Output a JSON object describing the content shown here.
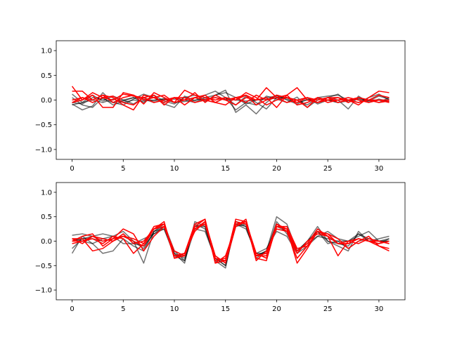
{
  "chart_data": [
    {
      "type": "line",
      "title": "",
      "xlabel": "",
      "ylabel": "",
      "xlim": [
        -1.55,
        32.55
      ],
      "ylim": [
        -1.2,
        1.2
      ],
      "xticks": [
        0,
        5,
        10,
        15,
        20,
        25,
        30
      ],
      "xtick_labels": [
        "0",
        "5",
        "10",
        "15",
        "20",
        "25",
        "30"
      ],
      "yticks": [
        -1.0,
        -0.5,
        0.0,
        0.5,
        1.0
      ],
      "ytick_labels": [
        "−1.0",
        "−0.5",
        "0.0",
        "0.5",
        "1.0"
      ],
      "grid": false,
      "legend": "none",
      "x": [
        0,
        1,
        2,
        3,
        4,
        5,
        6,
        7,
        8,
        9,
        10,
        11,
        12,
        13,
        14,
        15,
        16,
        17,
        18,
        19,
        20,
        21,
        22,
        23,
        24,
        25,
        26,
        27,
        28,
        29,
        30,
        31
      ],
      "series": [
        {
          "color": "#000000",
          "alpha": 0.55,
          "values": [
            -0.08,
            -0.2,
            -0.12,
            0.15,
            -0.05,
            -0.1,
            0.02,
            0.12,
            0.05,
            -0.08,
            -0.15,
            0.08,
            -0.02,
            0.1,
            0.18,
            0.05,
            -0.2,
            -0.05,
            -0.1,
            0.08,
            0.02,
            -0.05,
            0.06,
            -0.15,
            0.0,
            0.05,
            0.12,
            -0.05,
            0.04,
            -0.02,
            0.08,
            0.02
          ]
        },
        {
          "color": "#000000",
          "alpha": 0.55,
          "values": [
            0.12,
            -0.05,
            0.1,
            -0.02,
            0.08,
            0.0,
            -0.08,
            0.05,
            -0.02,
            0.03,
            -0.05,
            0.0,
            0.05,
            -0.03,
            0.1,
            0.2,
            -0.25,
            -0.1,
            -0.28,
            -0.05,
            0.1,
            0.0,
            -0.08,
            0.02,
            -0.05,
            0.05,
            0.0,
            -0.18,
            0.08,
            -0.05,
            0.02,
            -0.03
          ]
        },
        {
          "color": "#000000",
          "alpha": 0.55,
          "values": [
            0.05,
            -0.1,
            -0.15,
            0.05,
            -0.1,
            -0.02,
            0.05,
            -0.05,
            0.1,
            -0.02,
            -0.08,
            0.05,
            0.1,
            0.0,
            -0.05,
            0.05,
            -0.1,
            0.08,
            -0.05,
            -0.18,
            0.05,
            0.05,
            0.0,
            0.05,
            -0.08,
            0.0,
            -0.05,
            -0.02,
            0.05,
            0.0,
            -0.05,
            0.05
          ]
        },
        {
          "color": "#000000",
          "alpha": 0.55,
          "values": [
            -0.1,
            -0.05,
            0.0,
            -0.05,
            0.02,
            -0.05,
            0.0,
            -0.02,
            0.0,
            0.02,
            -0.05,
            -0.03,
            0.0,
            0.02,
            0.05,
            0.02,
            0.0,
            -0.02,
            0.0,
            0.02,
            0.05,
            0.02,
            -0.05,
            0.0,
            0.03,
            0.0,
            -0.05,
            0.0,
            0.02,
            -0.02,
            0.0,
            -0.03
          ]
        },
        {
          "color": "#000000",
          "alpha": 0.55,
          "values": [
            -0.05,
            -0.08,
            0.05,
            0.02,
            -0.05,
            0.0,
            0.05,
            0.02,
            -0.05,
            0.0,
            0.02,
            0.0,
            -0.05,
            0.05,
            0.1,
            0.15,
            0.05,
            -0.08,
            0.0,
            0.05,
            0.08,
            0.05,
            0.0,
            -0.1,
            0.05,
            0.08,
            0.1,
            0.0,
            -0.05,
            0.05,
            0.12,
            0.0
          ]
        },
        {
          "color": "#ff0000",
          "alpha": 1.0,
          "values": [
            0.28,
            0.0,
            0.15,
            0.05,
            0.08,
            -0.05,
            -0.1,
            0.05,
            0.1,
            -0.1,
            0.05,
            -0.1,
            0.05,
            0.0,
            -0.05,
            0.05,
            0.0,
            0.1,
            0.0,
            0.25,
            0.05,
            0.1,
            0.25,
            0.0,
            -0.05,
            0.05,
            0.05,
            -0.05,
            0.05,
            0.0,
            0.1,
            0.05
          ]
        },
        {
          "color": "#ff0000",
          "alpha": 1.0,
          "values": [
            0.18,
            0.18,
            0.0,
            0.1,
            0.05,
            -0.1,
            -0.2,
            0.1,
            0.05,
            0.1,
            -0.05,
            0.0,
            0.05,
            0.1,
            -0.05,
            -0.1,
            0.05,
            0.1,
            -0.1,
            0.0,
            0.1,
            0.05,
            -0.05,
            0.05,
            0.0,
            0.05,
            -0.05,
            0.0,
            -0.05,
            0.0,
            -0.05,
            -0.02
          ]
        },
        {
          "color": "#ff0000",
          "alpha": 1.0,
          "values": [
            -0.05,
            0.0,
            0.1,
            -0.15,
            -0.15,
            0.15,
            0.1,
            -0.08,
            0.15,
            0.05,
            -0.05,
            0.2,
            0.1,
            0.05,
            0.0,
            0.05,
            0.0,
            0.15,
            0.05,
            -0.1,
            0.0,
            0.05,
            0.0,
            -0.15,
            0.05,
            -0.05,
            0.0,
            0.0,
            0.05,
            0.0,
            0.0,
            0.0
          ]
        },
        {
          "color": "#ff0000",
          "alpha": 1.0,
          "values": [
            0.0,
            0.05,
            -0.05,
            0.05,
            0.0,
            0.12,
            0.08,
            0.05,
            -0.05,
            0.0,
            0.05,
            0.0,
            0.15,
            -0.05,
            0.1,
            0.0,
            -0.1,
            0.05,
            0.0,
            0.05,
            -0.15,
            0.1,
            -0.1,
            -0.05,
            0.05,
            0.0,
            0.05,
            0.0,
            -0.1,
            0.05,
            0.18,
            0.15
          ]
        },
        {
          "color": "#ff0000",
          "alpha": 1.0,
          "values": [
            -0.05,
            0.05,
            0.0,
            0.1,
            -0.05,
            0.05,
            0.1,
            0.0,
            0.05,
            -0.05,
            0.05,
            0.05,
            -0.05,
            0.0,
            0.05,
            0.0,
            0.05,
            -0.05,
            0.1,
            0.0,
            0.05,
            -0.05,
            0.0,
            0.05,
            -0.05,
            0.0,
            0.0,
            0.05,
            0.0,
            -0.05,
            0.0,
            -0.05
          ]
        }
      ]
    },
    {
      "type": "line",
      "title": "",
      "xlabel": "",
      "ylabel": "",
      "xlim": [
        -1.55,
        32.55
      ],
      "ylim": [
        -1.2,
        1.2
      ],
      "xticks": [
        0,
        5,
        10,
        15,
        20,
        25,
        30
      ],
      "xtick_labels": [
        "0",
        "5",
        "10",
        "15",
        "20",
        "25",
        "30"
      ],
      "yticks": [
        -1.0,
        -0.5,
        0.0,
        0.5,
        1.0
      ],
      "ytick_labels": [
        "−1.0",
        "−0.5",
        "0.0",
        "0.5",
        "1.0"
      ],
      "grid": false,
      "legend": "none",
      "x": [
        0,
        1,
        2,
        3,
        4,
        5,
        6,
        7,
        8,
        9,
        10,
        11,
        12,
        13,
        14,
        15,
        16,
        17,
        18,
        19,
        20,
        21,
        22,
        23,
        24,
        25,
        26,
        27,
        28,
        29,
        30,
        31
      ],
      "series": [
        {
          "color": "#000000",
          "alpha": 0.55,
          "values": [
            0.12,
            0.15,
            0.1,
            0.15,
            0.1,
            0.2,
            0.0,
            -0.45,
            0.2,
            0.25,
            -0.25,
            -0.45,
            0.4,
            0.3,
            -0.4,
            -0.55,
            0.4,
            0.35,
            -0.35,
            -0.2,
            0.5,
            0.35,
            -0.2,
            0.0,
            0.3,
            0.0,
            -0.1,
            -0.2,
            0.2,
            0.0,
            0.05,
            0.1
          ]
        },
        {
          "color": "#000000",
          "alpha": 0.55,
          "values": [
            -0.25,
            0.1,
            -0.05,
            -0.25,
            -0.2,
            0.05,
            -0.1,
            -0.2,
            0.2,
            0.35,
            -0.2,
            -0.4,
            0.25,
            0.2,
            -0.35,
            -0.5,
            0.35,
            0.25,
            -0.25,
            -0.15,
            0.2,
            0.1,
            -0.25,
            -0.1,
            0.1,
            0.2,
            0.05,
            0.0,
            0.1,
            0.2,
            0.0,
            0.0
          ]
        },
        {
          "color": "#000000",
          "alpha": 0.55,
          "values": [
            0.05,
            0.0,
            -0.05,
            0.05,
            0.1,
            -0.05,
            -0.05,
            0.05,
            0.15,
            0.25,
            -0.3,
            -0.3,
            0.3,
            0.3,
            -0.4,
            -0.4,
            0.35,
            0.3,
            -0.3,
            -0.2,
            0.35,
            0.2,
            -0.25,
            0.0,
            0.2,
            -0.05,
            0.0,
            0.0,
            0.15,
            0.0,
            -0.05,
            0.05
          ]
        },
        {
          "color": "#000000",
          "alpha": 0.55,
          "values": [
            -0.15,
            0.05,
            0.1,
            0.05,
            0.0,
            0.15,
            -0.05,
            -0.1,
            0.15,
            0.3,
            -0.25,
            -0.35,
            0.3,
            0.35,
            -0.3,
            -0.45,
            0.3,
            0.35,
            -0.25,
            -0.25,
            0.4,
            0.15,
            -0.2,
            -0.05,
            0.1,
            0.05,
            0.0,
            -0.15,
            0.0,
            0.05,
            0.0,
            0.0
          ]
        },
        {
          "color": "#000000",
          "alpha": 0.55,
          "values": [
            0.0,
            0.05,
            0.05,
            0.0,
            0.05,
            0.1,
            0.0,
            -0.15,
            0.2,
            0.3,
            -0.3,
            -0.4,
            0.35,
            0.25,
            -0.35,
            -0.5,
            0.4,
            0.3,
            -0.3,
            -0.2,
            0.3,
            0.2,
            -0.2,
            0.0,
            0.2,
            0.0,
            -0.05,
            -0.1,
            0.15,
            0.05,
            0.0,
            0.05
          ]
        },
        {
          "color": "#ff0000",
          "alpha": 1.0,
          "values": [
            0.05,
            -0.05,
            0.1,
            0.0,
            0.05,
            0.1,
            0.0,
            -0.1,
            0.25,
            0.4,
            -0.35,
            -0.3,
            0.3,
            0.45,
            -0.45,
            -0.4,
            0.45,
            0.4,
            -0.4,
            -0.2,
            0.25,
            0.2,
            -0.35,
            -0.1,
            0.2,
            0.15,
            -0.05,
            0.0,
            -0.05,
            0.05,
            0.0,
            -0.05
          ]
        },
        {
          "color": "#ff0000",
          "alpha": 1.0,
          "values": [
            0.0,
            0.1,
            0.15,
            -0.1,
            0.05,
            0.25,
            0.15,
            -0.2,
            0.1,
            0.3,
            -0.2,
            -0.3,
            0.25,
            0.4,
            -0.3,
            -0.45,
            0.3,
            0.45,
            -0.35,
            -0.4,
            0.35,
            0.25,
            -0.45,
            -0.15,
            0.2,
            0.1,
            -0.3,
            0.0,
            0.05,
            0.0,
            -0.05,
            0.0
          ]
        },
        {
          "color": "#ff0000",
          "alpha": 1.0,
          "values": [
            -0.05,
            0.0,
            0.05,
            -0.05,
            0.1,
            0.05,
            -0.25,
            -0.05,
            0.3,
            0.35,
            -0.35,
            -0.25,
            0.35,
            0.45,
            -0.4,
            -0.35,
            0.35,
            0.4,
            -0.25,
            -0.35,
            0.3,
            0.3,
            -0.15,
            -0.1,
            0.2,
            0.15,
            0.05,
            -0.15,
            0.0,
            0.1,
            -0.1,
            -0.15
          ]
        },
        {
          "color": "#ff0000",
          "alpha": 1.0,
          "values": [
            0.05,
            0.05,
            -0.2,
            -0.15,
            0.0,
            0.15,
            -0.05,
            0.0,
            0.25,
            0.3,
            -0.3,
            -0.25,
            0.2,
            0.4,
            -0.45,
            -0.3,
            0.3,
            0.4,
            -0.3,
            -0.25,
            0.35,
            0.2,
            -0.25,
            0.0,
            0.15,
            0.1,
            -0.05,
            -0.05,
            0.05,
            0.0,
            0.0,
            -0.05
          ]
        },
        {
          "color": "#ff0000",
          "alpha": 1.0,
          "values": [
            0.0,
            0.0,
            0.1,
            0.05,
            0.0,
            0.1,
            0.05,
            -0.05,
            0.25,
            0.35,
            -0.3,
            -0.25,
            0.25,
            0.35,
            -0.35,
            -0.4,
            0.4,
            0.35,
            -0.3,
            -0.3,
            0.3,
            0.25,
            -0.2,
            -0.05,
            0.25,
            0.1,
            -0.05,
            -0.05,
            0.05,
            0.0,
            -0.1,
            -0.2
          ]
        }
      ]
    }
  ]
}
